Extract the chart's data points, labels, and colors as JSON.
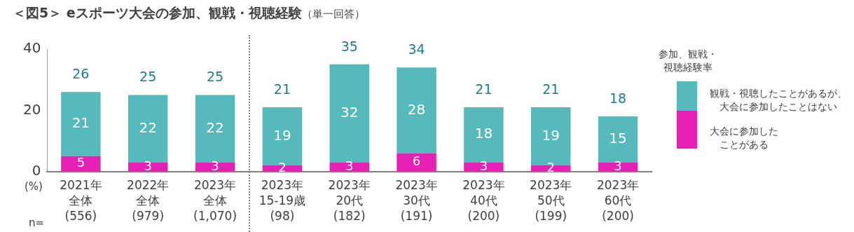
{
  "chart_data": {
    "type": "bar",
    "title": "＜図5＞ eスポーツ大会の参加、観戦・視聴経験",
    "subtitle": "（単一回答）",
    "ylabel": "(%)",
    "legend_title": "参加、観戦・視聴経験率",
    "categories": [
      "2021年全体(556)",
      "2022年全体(979)",
      "2023年全体(1,070)",
      "2023年15-19歳(98)",
      "2023年20代(182)",
      "2023年30代(191)",
      "2023年40代(200)",
      "2023年50代(199)",
      "2023年60代(200)"
    ],
    "stacked": true,
    "series": [
      {
        "name": "大会に参加したことがある",
        "color": "#e620b4",
        "values": [
          5,
          3,
          3,
          2,
          3,
          6,
          3,
          2,
          3
        ]
      },
      {
        "name": "観戦・視聴したことがあるが、大会に参加したことはない",
        "color": "#56b9bc",
        "values": [
          21,
          22,
          22,
          19,
          32,
          28,
          18,
          19,
          15
        ]
      }
    ],
    "totals": [
      "26",
      "25",
      "25",
      "21",
      "35",
      "34",
      "21",
      "21",
      "18"
    ],
    "data_labels": true,
    "ylim": [
      0,
      40
    ],
    "yticks": [
      0,
      20,
      40
    ],
    "grid": false,
    "legend": "right",
    "annotations": [
      "n="
    ]
  }
}
